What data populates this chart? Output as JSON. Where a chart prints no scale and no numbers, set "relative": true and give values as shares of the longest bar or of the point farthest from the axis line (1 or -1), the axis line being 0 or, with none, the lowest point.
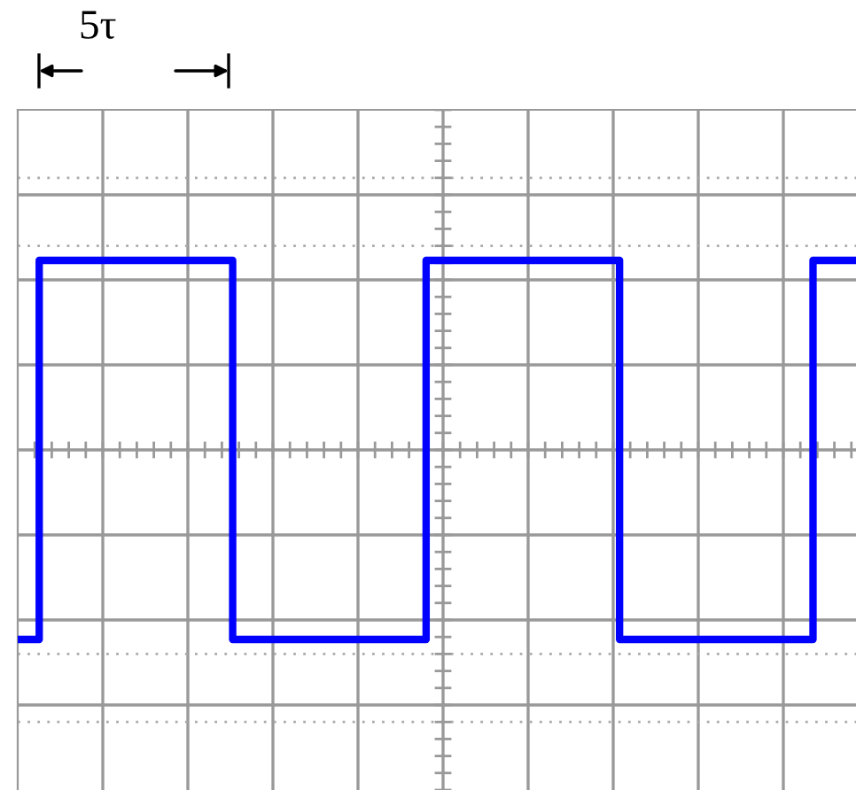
{
  "chart_data": {
    "type": "step",
    "relative": true,
    "categories": [
      null,
      null,
      null,
      null,
      null,
      null,
      null,
      null,
      null,
      null,
      null,
      null,
      null,
      null,
      null,
      null,
      null,
      null,
      null,
      null,
      null,
      null,
      null,
      null,
      null,
      null,
      null,
      null,
      null,
      null,
      null,
      null,
      null,
      null,
      null,
      null,
      null,
      null,
      null,
      null
    ],
    "series": [
      {
        "color": "#0000ff",
        "values": [
          -1,
          1,
          1,
          1,
          1,
          1,
          1,
          1,
          1,
          1,
          -1,
          -1,
          -1,
          -1,
          -1,
          -1,
          -1,
          -1,
          -1,
          1,
          1,
          1,
          1,
          1,
          1,
          1,
          1,
          1,
          -1,
          -1,
          -1,
          -1,
          -1,
          -1,
          -1,
          -1,
          -1,
          1,
          1,
          1
        ]
      }
    ],
    "annotations": [
      "5τ"
    ],
    "grid": true
  }
}
